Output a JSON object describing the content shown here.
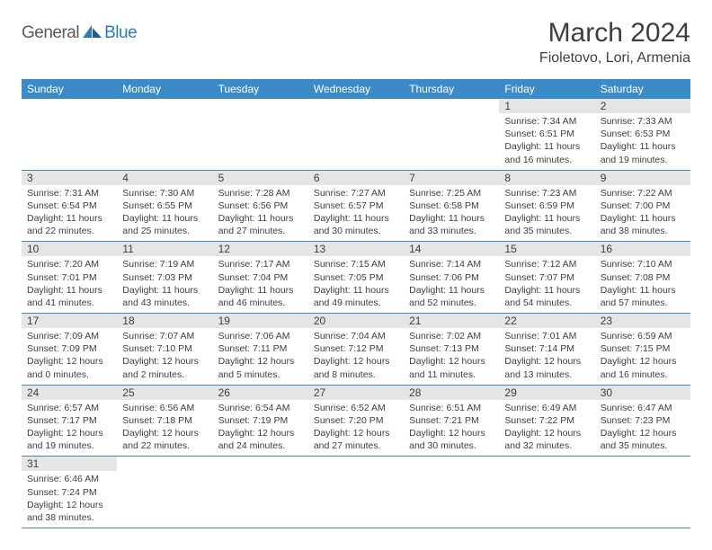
{
  "logo": {
    "text_a": "General",
    "text_b": "Blue"
  },
  "title": "March 2024",
  "location": "Fioletovo, Lori, Armenia",
  "colors": {
    "header_bg": "#3b8bc9",
    "day_num_bg": "#e5e5e5",
    "text": "#3e3e3e",
    "logo_blue": "#2b7bbf"
  },
  "weekdays": [
    "Sunday",
    "Monday",
    "Tuesday",
    "Wednesday",
    "Thursday",
    "Friday",
    "Saturday"
  ],
  "rows": [
    [
      null,
      null,
      null,
      null,
      null,
      {
        "n": "1",
        "sr": "Sunrise: 7:34 AM",
        "ss": "Sunset: 6:51 PM",
        "dl": "Daylight: 11 hours and 16 minutes."
      },
      {
        "n": "2",
        "sr": "Sunrise: 7:33 AM",
        "ss": "Sunset: 6:53 PM",
        "dl": "Daylight: 11 hours and 19 minutes."
      }
    ],
    [
      {
        "n": "3",
        "sr": "Sunrise: 7:31 AM",
        "ss": "Sunset: 6:54 PM",
        "dl": "Daylight: 11 hours and 22 minutes."
      },
      {
        "n": "4",
        "sr": "Sunrise: 7:30 AM",
        "ss": "Sunset: 6:55 PM",
        "dl": "Daylight: 11 hours and 25 minutes."
      },
      {
        "n": "5",
        "sr": "Sunrise: 7:28 AM",
        "ss": "Sunset: 6:56 PM",
        "dl": "Daylight: 11 hours and 27 minutes."
      },
      {
        "n": "6",
        "sr": "Sunrise: 7:27 AM",
        "ss": "Sunset: 6:57 PM",
        "dl": "Daylight: 11 hours and 30 minutes."
      },
      {
        "n": "7",
        "sr": "Sunrise: 7:25 AM",
        "ss": "Sunset: 6:58 PM",
        "dl": "Daylight: 11 hours and 33 minutes."
      },
      {
        "n": "8",
        "sr": "Sunrise: 7:23 AM",
        "ss": "Sunset: 6:59 PM",
        "dl": "Daylight: 11 hours and 35 minutes."
      },
      {
        "n": "9",
        "sr": "Sunrise: 7:22 AM",
        "ss": "Sunset: 7:00 PM",
        "dl": "Daylight: 11 hours and 38 minutes."
      }
    ],
    [
      {
        "n": "10",
        "sr": "Sunrise: 7:20 AM",
        "ss": "Sunset: 7:01 PM",
        "dl": "Daylight: 11 hours and 41 minutes."
      },
      {
        "n": "11",
        "sr": "Sunrise: 7:19 AM",
        "ss": "Sunset: 7:03 PM",
        "dl": "Daylight: 11 hours and 43 minutes."
      },
      {
        "n": "12",
        "sr": "Sunrise: 7:17 AM",
        "ss": "Sunset: 7:04 PM",
        "dl": "Daylight: 11 hours and 46 minutes."
      },
      {
        "n": "13",
        "sr": "Sunrise: 7:15 AM",
        "ss": "Sunset: 7:05 PM",
        "dl": "Daylight: 11 hours and 49 minutes."
      },
      {
        "n": "14",
        "sr": "Sunrise: 7:14 AM",
        "ss": "Sunset: 7:06 PM",
        "dl": "Daylight: 11 hours and 52 minutes."
      },
      {
        "n": "15",
        "sr": "Sunrise: 7:12 AM",
        "ss": "Sunset: 7:07 PM",
        "dl": "Daylight: 11 hours and 54 minutes."
      },
      {
        "n": "16",
        "sr": "Sunrise: 7:10 AM",
        "ss": "Sunset: 7:08 PM",
        "dl": "Daylight: 11 hours and 57 minutes."
      }
    ],
    [
      {
        "n": "17",
        "sr": "Sunrise: 7:09 AM",
        "ss": "Sunset: 7:09 PM",
        "dl": "Daylight: 12 hours and 0 minutes."
      },
      {
        "n": "18",
        "sr": "Sunrise: 7:07 AM",
        "ss": "Sunset: 7:10 PM",
        "dl": "Daylight: 12 hours and 2 minutes."
      },
      {
        "n": "19",
        "sr": "Sunrise: 7:06 AM",
        "ss": "Sunset: 7:11 PM",
        "dl": "Daylight: 12 hours and 5 minutes."
      },
      {
        "n": "20",
        "sr": "Sunrise: 7:04 AM",
        "ss": "Sunset: 7:12 PM",
        "dl": "Daylight: 12 hours and 8 minutes."
      },
      {
        "n": "21",
        "sr": "Sunrise: 7:02 AM",
        "ss": "Sunset: 7:13 PM",
        "dl": "Daylight: 12 hours and 11 minutes."
      },
      {
        "n": "22",
        "sr": "Sunrise: 7:01 AM",
        "ss": "Sunset: 7:14 PM",
        "dl": "Daylight: 12 hours and 13 minutes."
      },
      {
        "n": "23",
        "sr": "Sunrise: 6:59 AM",
        "ss": "Sunset: 7:15 PM",
        "dl": "Daylight: 12 hours and 16 minutes."
      }
    ],
    [
      {
        "n": "24",
        "sr": "Sunrise: 6:57 AM",
        "ss": "Sunset: 7:17 PM",
        "dl": "Daylight: 12 hours and 19 minutes."
      },
      {
        "n": "25",
        "sr": "Sunrise: 6:56 AM",
        "ss": "Sunset: 7:18 PM",
        "dl": "Daylight: 12 hours and 22 minutes."
      },
      {
        "n": "26",
        "sr": "Sunrise: 6:54 AM",
        "ss": "Sunset: 7:19 PM",
        "dl": "Daylight: 12 hours and 24 minutes."
      },
      {
        "n": "27",
        "sr": "Sunrise: 6:52 AM",
        "ss": "Sunset: 7:20 PM",
        "dl": "Daylight: 12 hours and 27 minutes."
      },
      {
        "n": "28",
        "sr": "Sunrise: 6:51 AM",
        "ss": "Sunset: 7:21 PM",
        "dl": "Daylight: 12 hours and 30 minutes."
      },
      {
        "n": "29",
        "sr": "Sunrise: 6:49 AM",
        "ss": "Sunset: 7:22 PM",
        "dl": "Daylight: 12 hours and 32 minutes."
      },
      {
        "n": "30",
        "sr": "Sunrise: 6:47 AM",
        "ss": "Sunset: 7:23 PM",
        "dl": "Daylight: 12 hours and 35 minutes."
      }
    ],
    [
      {
        "n": "31",
        "sr": "Sunrise: 6:46 AM",
        "ss": "Sunset: 7:24 PM",
        "dl": "Daylight: 12 hours and 38 minutes."
      },
      null,
      null,
      null,
      null,
      null,
      null
    ]
  ]
}
